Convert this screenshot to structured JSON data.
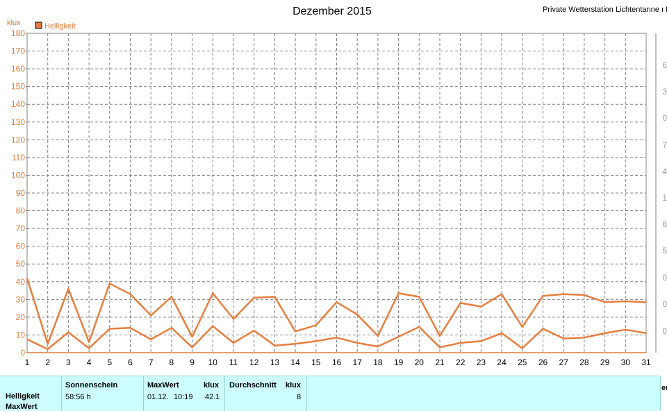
{
  "header": {
    "title": "Dezember 2015",
    "station": "Private Wetterstation Lichtentanne ı L"
  },
  "chart_data": {
    "type": "line",
    "title": "Dezember 2015",
    "ylabel": "klux",
    "ylim": [
      0,
      180
    ],
    "yticks": [
      0,
      10,
      20,
      30,
      40,
      50,
      60,
      70,
      80,
      90,
      100,
      110,
      120,
      130,
      140,
      150,
      160,
      170,
      180
    ],
    "x": [
      1,
      2,
      3,
      4,
      5,
      6,
      7,
      8,
      9,
      10,
      11,
      12,
      13,
      14,
      15,
      16,
      17,
      18,
      19,
      20,
      21,
      22,
      23,
      24,
      25,
      26,
      27,
      28,
      29,
      30,
      31
    ],
    "legend": "top-left",
    "grid": true,
    "series": [
      {
        "name": "Helligkeit",
        "color": "#e67e3f",
        "values": [
          42,
          5,
          36,
          6,
          39,
          33,
          21,
          31.5,
          9,
          33.5,
          19,
          31,
          31.5,
          12,
          15.5,
          28.5,
          21.5,
          9.5,
          33.5,
          31.5,
          9.5,
          28,
          26,
          33,
          14.5,
          32,
          33,
          32.5,
          28.5,
          29,
          28.5
        ]
      },
      {
        "name": "",
        "color": "#e67e3f",
        "values": [
          7.5,
          2,
          11.5,
          2.5,
          13.5,
          14,
          7.5,
          14,
          3,
          15,
          5.5,
          12.5,
          4,
          5,
          6.5,
          8.5,
          5.5,
          3.5,
          9,
          14.5,
          3,
          5.5,
          6.5,
          11,
          2.5,
          13.5,
          8,
          8.5,
          11,
          13,
          11
        ]
      }
    ],
    "right_axis_ticks": [
      "",
      "0",
      "0",
      "0",
      "5",
      "8",
      "1",
      "4",
      "7",
      "0",
      "3",
      "6"
    ]
  },
  "stats": {
    "row_helligkeit": "Helligkeit",
    "row_maxwert": "MaxWert",
    "sonnenschein_label": "Sonnenschein",
    "sonnenschein_value": "58:56 h",
    "maxwert_label": "MaxWert",
    "maxwert_unit": "klux",
    "maxwert_date": "01.12.",
    "maxwert_time": "10:19",
    "maxwert_value": "42.1",
    "durchschnitt_label": "Durchschnitt",
    "durchschnitt_unit": "klux",
    "durchschnitt_value": "8",
    "right_edge_text": "er"
  }
}
